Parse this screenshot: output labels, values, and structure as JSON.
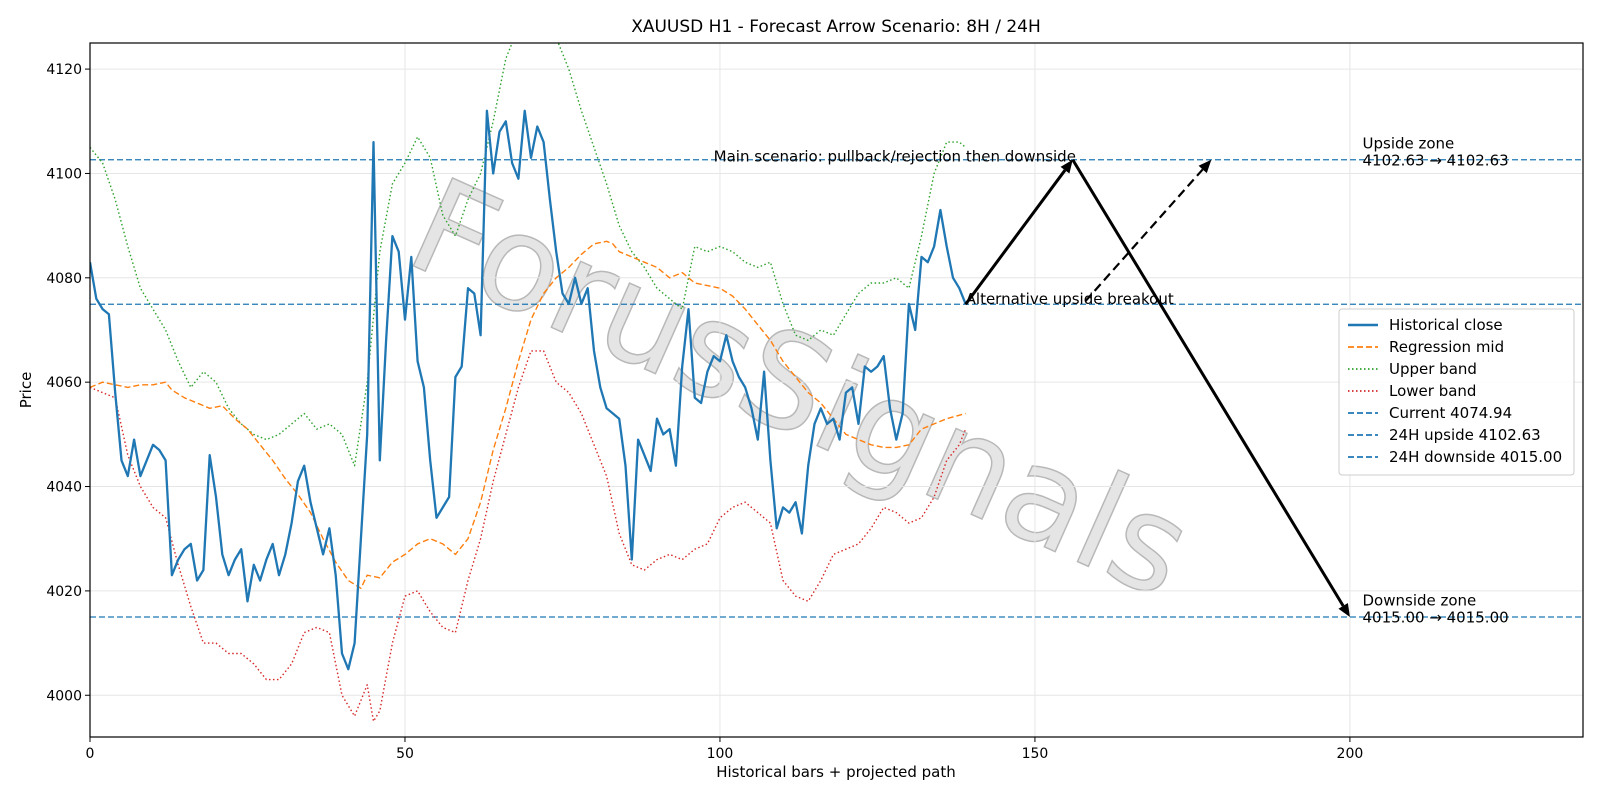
{
  "chart_data": {
    "type": "line",
    "title": "XAUUSD H1 - Forecast Arrow Scenario: 8H / 24H",
    "xlabel": "Historical bars + projected path",
    "ylabel": "Price",
    "xlim": [
      0,
      237
    ],
    "ylim": [
      3992,
      4125
    ],
    "xticks": [
      0,
      50,
      100,
      150,
      200
    ],
    "yticks": [
      4000,
      4020,
      4040,
      4060,
      4080,
      4100,
      4120
    ],
    "grid": true,
    "legend_position": "center-right",
    "watermark": "ForusSignals",
    "series": [
      {
        "name": "Historical close",
        "style": "solid",
        "color": "#1f77b4",
        "x": [
          0,
          1,
          2,
          3,
          4,
          5,
          6,
          7,
          8,
          9,
          10,
          11,
          12,
          13,
          14,
          15,
          16,
          17,
          18,
          19,
          20,
          21,
          22,
          23,
          24,
          25,
          26,
          27,
          28,
          29,
          30,
          31,
          32,
          33,
          34,
          35,
          36,
          37,
          38,
          39,
          40,
          41,
          42,
          43,
          44,
          45,
          46,
          47,
          48,
          49,
          50,
          51,
          52,
          53,
          54,
          55,
          56,
          57,
          58,
          59,
          60,
          61,
          62,
          63,
          64,
          65,
          66,
          67,
          68,
          69,
          70,
          71,
          72,
          73,
          74,
          75,
          76,
          77,
          78,
          79,
          80,
          81,
          82,
          83,
          84,
          85,
          86,
          87,
          88,
          89,
          90,
          91,
          92,
          93,
          94,
          95,
          96,
          97,
          98,
          99,
          100,
          101,
          102,
          103,
          104,
          105,
          106,
          107,
          108,
          109,
          110,
          111,
          112,
          113,
          114,
          115,
          116,
          117,
          118,
          119,
          120,
          121,
          122,
          123,
          124,
          125,
          126,
          127,
          128,
          129,
          130,
          131,
          132,
          133,
          134,
          135,
          136,
          137,
          138,
          139
        ],
        "values": [
          4083,
          4076,
          4074,
          4073,
          4058,
          4045,
          4042,
          4049,
          4042,
          4045,
          4048,
          4047,
          4045,
          4023,
          4026,
          4028,
          4029,
          4022,
          4024,
          4046,
          4038,
          4027,
          4023,
          4026,
          4028,
          4018,
          4025,
          4022,
          4026,
          4029,
          4023,
          4027,
          4033,
          4041,
          4044,
          4037,
          4032,
          4027,
          4032,
          4023,
          4008,
          4005,
          4010,
          4030,
          4050,
          4106,
          4045,
          4068,
          4088,
          4085,
          4072,
          4084,
          4064,
          4059,
          4045,
          4034,
          4036,
          4038,
          4061,
          4063,
          4078,
          4077,
          4069,
          4112,
          4100,
          4108,
          4110,
          4102,
          4099,
          4112,
          4103,
          4109,
          4106,
          4095,
          4085,
          4077,
          4075,
          4080,
          4075,
          4078,
          4066,
          4059,
          4055,
          4054,
          4053,
          4044,
          4026,
          4049,
          4046,
          4043,
          4053,
          4050,
          4051,
          4044,
          4063,
          4074,
          4057,
          4056,
          4062,
          4065,
          4064,
          4069,
          4064,
          4061,
          4059,
          4055,
          4049,
          4062,
          4045,
          4032,
          4036,
          4035,
          4037,
          4031,
          4044,
          4052,
          4055,
          4052,
          4053,
          4049,
          4058,
          4059,
          4052,
          4063,
          4062,
          4063,
          4065,
          4055,
          4049,
          4054,
          4075,
          4070,
          4084,
          4083,
          4086,
          4093,
          4086,
          4080,
          4078,
          4075
        ]
      },
      {
        "name": "Regression mid",
        "style": "dashed",
        "color": "#ff7f0e",
        "x": [
          0,
          2,
          4,
          6,
          8,
          10,
          12,
          13,
          15,
          17,
          19,
          21,
          23,
          25,
          27,
          29,
          31,
          33,
          35,
          37,
          39,
          41,
          43,
          44,
          46,
          48,
          50,
          52,
          54,
          56,
          58,
          60,
          62,
          64,
          66,
          68,
          70,
          72,
          74,
          76,
          78,
          80,
          82,
          83,
          84,
          86,
          88,
          90,
          92,
          94,
          96,
          98,
          100,
          102,
          104,
          106,
          108,
          110,
          112,
          114,
          116,
          118,
          120,
          122,
          124,
          126,
          128,
          130,
          132,
          134,
          136,
          139
        ],
        "values": [
          4059,
          4060,
          4059.5,
          4059,
          4059.5,
          4059.5,
          4060,
          4058.5,
          4057,
          4056,
          4055,
          4055.5,
          4053,
          4051,
          4048,
          4045,
          4041.5,
          4038.5,
          4035,
          4030,
          4025.5,
          4022,
          4020.5,
          4023,
          4022.5,
          4025.5,
          4027,
          4029,
          4030,
          4029,
          4027,
          4030,
          4037,
          4047,
          4055,
          4064,
          4072,
          4077,
          4080,
          4082,
          4084.5,
          4086.5,
          4087,
          4086.5,
          4085,
          4084,
          4083,
          4082,
          4080,
          4081,
          4079,
          4078.5,
          4078,
          4076.5,
          4074,
          4071,
          4068,
          4064,
          4061,
          4058,
          4056,
          4053,
          4050,
          4049,
          4048,
          4047.5,
          4047.5,
          4048,
          4051,
          4052,
          4053,
          4054
        ]
      },
      {
        "name": "Upper band",
        "style": "dotted",
        "color": "#2ca02c",
        "x": [
          0,
          2,
          4,
          6,
          8,
          10,
          12,
          14,
          16,
          18,
          20,
          22,
          24,
          26,
          28,
          30,
          32,
          34,
          36,
          38,
          40,
          42,
          44,
          46,
          48,
          50,
          52,
          54,
          56,
          58,
          60,
          62,
          64,
          66,
          68,
          70,
          72,
          74,
          76,
          78,
          80,
          82,
          84,
          86,
          88,
          90,
          92,
          94,
          96,
          98,
          100,
          102,
          104,
          106,
          108,
          110,
          112,
          114,
          116,
          118,
          120,
          122,
          124,
          126,
          128,
          130,
          132,
          134,
          136,
          138,
          139
        ],
        "values": [
          4105,
          4102,
          4095,
          4086,
          4078,
          4074,
          4070,
          4064,
          4059,
          4062,
          4060,
          4055,
          4052,
          4050,
          4049,
          4050,
          4052,
          4054,
          4051,
          4052,
          4050,
          4044,
          4060,
          4085,
          4098,
          4102,
          4107,
          4103,
          4092,
          4088,
          4095,
          4100,
          4110,
          4122,
          4128,
          4130,
          4128,
          4126,
          4120,
          4112,
          4105,
          4098,
          4090,
          4085,
          4082,
          4078,
          4076,
          4074,
          4086,
          4085,
          4086,
          4085,
          4083,
          4082,
          4083,
          4075,
          4069,
          4068,
          4070,
          4069,
          4073,
          4077,
          4079,
          4079,
          4080,
          4078,
          4088,
          4100,
          4106,
          4106,
          4105
        ]
      },
      {
        "name": "Lower band",
        "style": "dotted",
        "color": "#d62728",
        "x": [
          0,
          2,
          4,
          6,
          8,
          10,
          12,
          14,
          16,
          18,
          20,
          22,
          24,
          26,
          28,
          30,
          32,
          34,
          36,
          38,
          40,
          42,
          44,
          45,
          46,
          48,
          50,
          52,
          54,
          56,
          58,
          60,
          62,
          64,
          66,
          68,
          70,
          72,
          74,
          76,
          78,
          80,
          82,
          84,
          86,
          88,
          90,
          92,
          94,
          96,
          98,
          100,
          102,
          104,
          106,
          108,
          110,
          112,
          114,
          116,
          118,
          120,
          122,
          124,
          126,
          128,
          130,
          132,
          134,
          136,
          138,
          139
        ],
        "values": [
          4059,
          4058,
          4057,
          4046,
          4040,
          4036,
          4034,
          4025,
          4017,
          4010,
          4010,
          4008,
          4008,
          4006,
          4003,
          4003,
          4006,
          4012,
          4013,
          4012,
          4000,
          3996,
          4002,
          3995,
          3997,
          4010,
          4019,
          4020,
          4016,
          4013,
          4012,
          4022,
          4030,
          4041,
          4050,
          4059,
          4066,
          4066,
          4060,
          4058,
          4054,
          4048,
          4042,
          4031,
          4025,
          4024,
          4026,
          4027,
          4026,
          4028,
          4029,
          4034,
          4036,
          4037,
          4035,
          4033,
          4022,
          4019,
          4018,
          4022,
          4027,
          4028,
          4029,
          4032,
          4036,
          4035,
          4033,
          4034,
          4038,
          4045,
          4048,
          4051
        ]
      }
    ],
    "hlines": [
      {
        "name": "Current 4074.94",
        "y": 4074.94,
        "style": "dashed",
        "color": "#1f77b4"
      },
      {
        "name": "24H upside 4102.63",
        "y": 4102.63,
        "style": "dashed",
        "color": "#1f77b4"
      },
      {
        "name": "24H downside 4015.00",
        "y": 4015.0,
        "style": "dashed",
        "color": "#1f77b4"
      }
    ],
    "arrows": [
      {
        "name": "main-up",
        "from": [
          139,
          4074.94
        ],
        "to": [
          156,
          4102.63
        ],
        "style": "solid"
      },
      {
        "name": "main-down",
        "from": [
          156,
          4102.63
        ],
        "to": [
          200,
          4015.0
        ],
        "style": "solid"
      },
      {
        "name": "alt-up",
        "from": [
          158,
          4075.5
        ],
        "to": [
          178,
          4102.63
        ],
        "style": "dashed"
      }
    ],
    "annotations": [
      {
        "name": "main-scenario",
        "text": "Main scenario: pullback/rejection then downside",
        "x": 99,
        "y": 4102.3
      },
      {
        "name": "alt-scenario",
        "text": "Alternative upside breakout",
        "x": 139,
        "y": 4075
      },
      {
        "name": "upside-zone-title",
        "text": "Upside zone",
        "x": 202,
        "y": 4104.8
      },
      {
        "name": "upside-zone-range",
        "text": "4102.63 → 4102.63",
        "x": 202,
        "y": 4101.5
      },
      {
        "name": "downside-zone-title",
        "text": "Downside zone",
        "x": 202,
        "y": 4017.2
      },
      {
        "name": "downside-zone-range",
        "text": "4015.00 → 4015.00",
        "x": 202,
        "y": 4013.9
      }
    ]
  }
}
